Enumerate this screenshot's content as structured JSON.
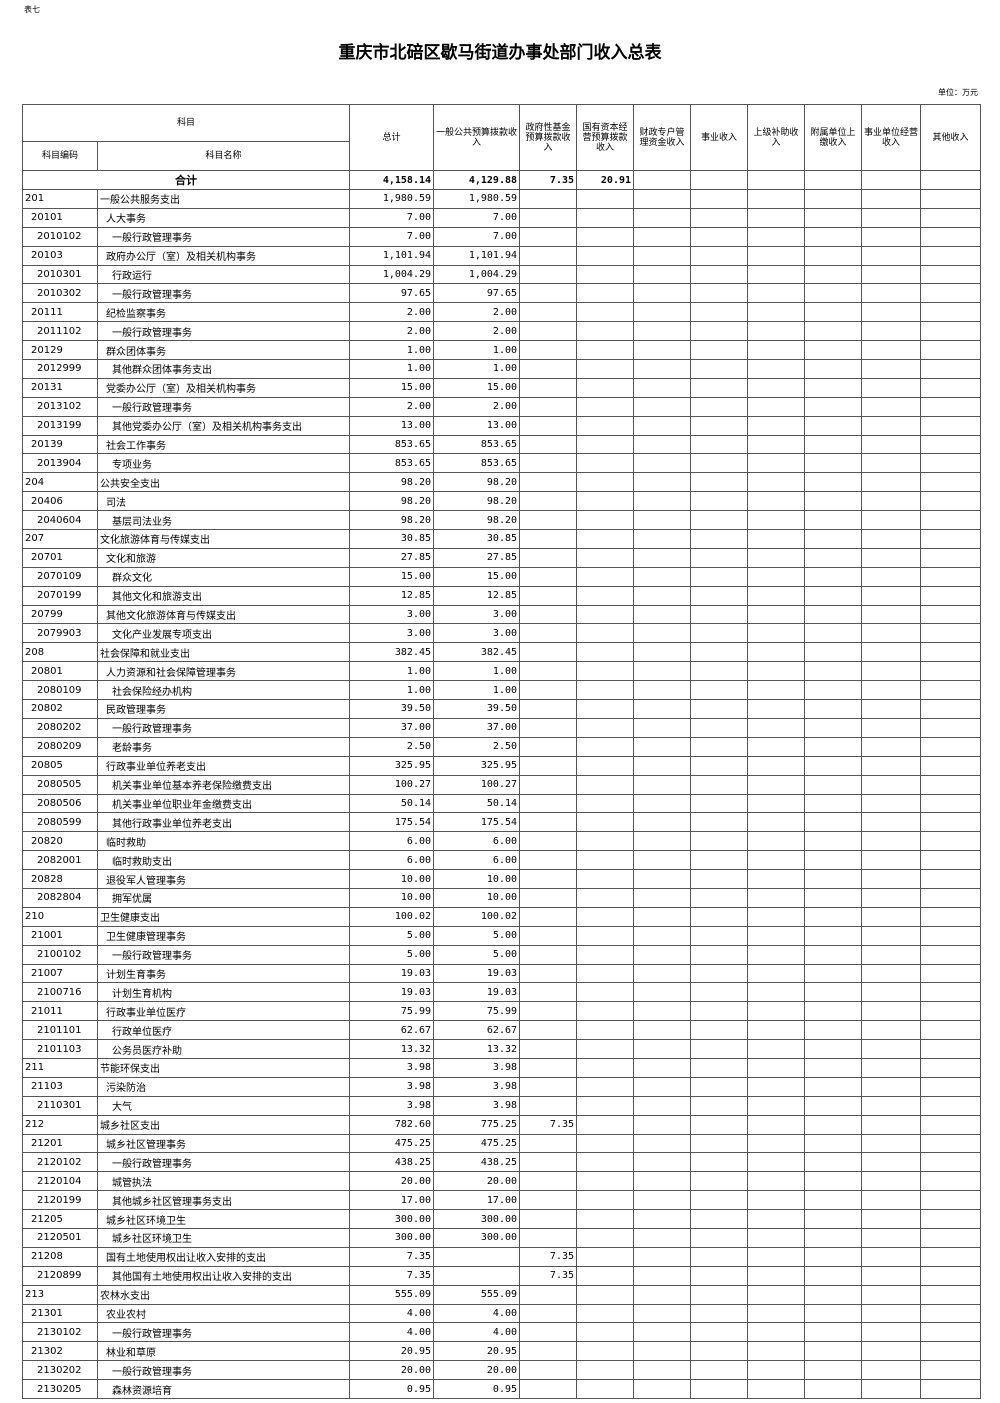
{
  "corner_label": "表七",
  "title": "重庆市北碚区歇马街道办事处部门收入总表",
  "unit": "单位：万元",
  "headers": {
    "subject": "科目",
    "code": "科目编码",
    "name": "科目名称",
    "cols": [
      "总计",
      "一般公共预算拨款收入",
      "政府性基金预算拨款收入",
      "国有资本经营预算拨款收入",
      "财政专户管理资金收入",
      "事业收入",
      "上级补助收入",
      "附属单位上缴收入",
      "事业单位经营收入",
      "其他收入"
    ]
  },
  "total": {
    "label": "合计",
    "values": [
      "4,158.14",
      "4,129.88",
      "7.35",
      "20.91"
    ]
  },
  "rows": [
    [
      "201",
      "一般公共服务支出",
      "1,980.59",
      "1,980.59",
      ""
    ],
    [
      "20101",
      "人大事务",
      "7.00",
      "7.00",
      ""
    ],
    [
      "2010102",
      "一般行政管理事务",
      "7.00",
      "7.00",
      ""
    ],
    [
      "20103",
      "政府办公厅（室）及相关机构事务",
      "1,101.94",
      "1,101.94",
      ""
    ],
    [
      "2010301",
      "行政运行",
      "1,004.29",
      "1,004.29",
      ""
    ],
    [
      "2010302",
      "一般行政管理事务",
      "97.65",
      "97.65",
      ""
    ],
    [
      "20111",
      "纪检监察事务",
      "2.00",
      "2.00",
      ""
    ],
    [
      "2011102",
      "一般行政管理事务",
      "2.00",
      "2.00",
      ""
    ],
    [
      "20129",
      "群众团体事务",
      "1.00",
      "1.00",
      ""
    ],
    [
      "2012999",
      "其他群众团体事务支出",
      "1.00",
      "1.00",
      ""
    ],
    [
      "20131",
      "党委办公厅（室）及相关机构事务",
      "15.00",
      "15.00",
      ""
    ],
    [
      "2013102",
      "一般行政管理事务",
      "2.00",
      "2.00",
      ""
    ],
    [
      "2013199",
      "其他党委办公厅（室）及相关机构事务支出",
      "13.00",
      "13.00",
      ""
    ],
    [
      "20139",
      "社会工作事务",
      "853.65",
      "853.65",
      ""
    ],
    [
      "2013904",
      "专项业务",
      "853.65",
      "853.65",
      ""
    ],
    [
      "204",
      "公共安全支出",
      "98.20",
      "98.20",
      ""
    ],
    [
      "20406",
      "司法",
      "98.20",
      "98.20",
      ""
    ],
    [
      "2040604",
      "基层司法业务",
      "98.20",
      "98.20",
      ""
    ],
    [
      "207",
      "文化旅游体育与传媒支出",
      "30.85",
      "30.85",
      ""
    ],
    [
      "20701",
      "文化和旅游",
      "27.85",
      "27.85",
      ""
    ],
    [
      "2070109",
      "群众文化",
      "15.00",
      "15.00",
      ""
    ],
    [
      "2070199",
      "其他文化和旅游支出",
      "12.85",
      "12.85",
      ""
    ],
    [
      "20799",
      "其他文化旅游体育与传媒支出",
      "3.00",
      "3.00",
      ""
    ],
    [
      "2079903",
      "文化产业发展专项支出",
      "3.00",
      "3.00",
      ""
    ],
    [
      "208",
      "社会保障和就业支出",
      "382.45",
      "382.45",
      ""
    ],
    [
      "20801",
      "人力资源和社会保障管理事务",
      "1.00",
      "1.00",
      ""
    ],
    [
      "2080109",
      "社会保险经办机构",
      "1.00",
      "1.00",
      ""
    ],
    [
      "20802",
      "民政管理事务",
      "39.50",
      "39.50",
      ""
    ],
    [
      "2080202",
      "一般行政管理事务",
      "37.00",
      "37.00",
      ""
    ],
    [
      "2080209",
      "老龄事务",
      "2.50",
      "2.50",
      ""
    ],
    [
      "20805",
      "行政事业单位养老支出",
      "325.95",
      "325.95",
      ""
    ],
    [
      "2080505",
      "机关事业单位基本养老保险缴费支出",
      "100.27",
      "100.27",
      ""
    ],
    [
      "2080506",
      "机关事业单位职业年金缴费支出",
      "50.14",
      "50.14",
      ""
    ],
    [
      "2080599",
      "其他行政事业单位养老支出",
      "175.54",
      "175.54",
      ""
    ],
    [
      "20820",
      "临时救助",
      "6.00",
      "6.00",
      ""
    ],
    [
      "2082001",
      "临时救助支出",
      "6.00",
      "6.00",
      ""
    ],
    [
      "20828",
      "退役军人管理事务",
      "10.00",
      "10.00",
      ""
    ],
    [
      "2082804",
      "拥军优属",
      "10.00",
      "10.00",
      ""
    ],
    [
      "210",
      "卫生健康支出",
      "100.02",
      "100.02",
      ""
    ],
    [
      "21001",
      "卫生健康管理事务",
      "5.00",
      "5.00",
      ""
    ],
    [
      "2100102",
      "一般行政管理事务",
      "5.00",
      "5.00",
      ""
    ],
    [
      "21007",
      "计划生育事务",
      "19.03",
      "19.03",
      ""
    ],
    [
      "2100716",
      "计划生育机构",
      "19.03",
      "19.03",
      ""
    ],
    [
      "21011",
      "行政事业单位医疗",
      "75.99",
      "75.99",
      ""
    ],
    [
      "2101101",
      "行政单位医疗",
      "62.67",
      "62.67",
      ""
    ],
    [
      "2101103",
      "公务员医疗补助",
      "13.32",
      "13.32",
      ""
    ],
    [
      "211",
      "节能环保支出",
      "3.98",
      "3.98",
      ""
    ],
    [
      "21103",
      "污染防治",
      "3.98",
      "3.98",
      ""
    ],
    [
      "2110301",
      "大气",
      "3.98",
      "3.98",
      ""
    ],
    [
      "212",
      "城乡社区支出",
      "782.60",
      "775.25",
      "7.35"
    ],
    [
      "21201",
      "城乡社区管理事务",
      "475.25",
      "475.25",
      ""
    ],
    [
      "2120102",
      "一般行政管理事务",
      "438.25",
      "438.25",
      ""
    ],
    [
      "2120104",
      "城管执法",
      "20.00",
      "20.00",
      ""
    ],
    [
      "2120199",
      "其他城乡社区管理事务支出",
      "17.00",
      "17.00",
      ""
    ],
    [
      "21205",
      "城乡社区环境卫生",
      "300.00",
      "300.00",
      ""
    ],
    [
      "2120501",
      "城乡社区环境卫生",
      "300.00",
      "300.00",
      ""
    ],
    [
      "21208",
      "国有土地使用权出让收入安排的支出",
      "7.35",
      "",
      "7.35"
    ],
    [
      "2120899",
      "其他国有土地使用权出让收入安排的支出",
      "7.35",
      "",
      "7.35"
    ],
    [
      "213",
      "农林水支出",
      "555.09",
      "555.09",
      ""
    ],
    [
      "21301",
      "农业农村",
      "4.00",
      "4.00",
      ""
    ],
    [
      "2130102",
      "一般行政管理事务",
      "4.00",
      "4.00",
      ""
    ],
    [
      "21302",
      "林业和草原",
      "20.95",
      "20.95",
      ""
    ],
    [
      "2130202",
      "一般行政管理事务",
      "20.00",
      "20.00",
      ""
    ],
    [
      "2130205",
      "森林资源培育",
      "0.95",
      "0.95",
      ""
    ]
  ]
}
